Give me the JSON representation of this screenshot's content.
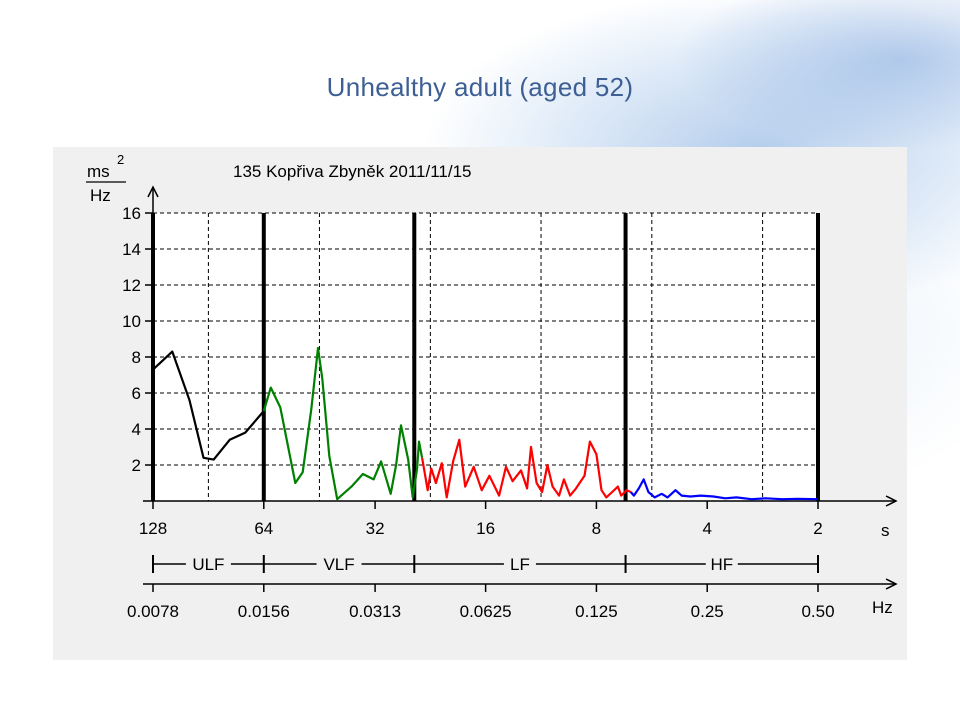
{
  "slide": {
    "title": "Unhealthy adult (aged 52)"
  },
  "chart_data": {
    "type": "line",
    "title": "135 Kopřiva Zbyněk 2011/11/15",
    "ylabel_top": "ms",
    "ylabel_exp": "2",
    "ylabel_bottom": "Hz",
    "y_ticks": [
      "16",
      "14",
      "12",
      "10",
      "8",
      "6",
      "4",
      "2"
    ],
    "ylim": [
      0,
      16
    ],
    "x_period_unit": "s",
    "x_period_ticks": [
      "128",
      "64",
      "32",
      "16",
      "8",
      "4",
      "2"
    ],
    "x_freq_unit": "Hz",
    "x_freq_ticks": [
      "0.0078",
      "0.0156",
      "0.0313",
      "0.0625",
      "0.125",
      "0.25",
      "0.50"
    ],
    "x_scale": "log2",
    "bands": [
      {
        "name": "ULF",
        "from": 0.0078,
        "to": 0.0156,
        "color": "#000000"
      },
      {
        "name": "VLF",
        "from": 0.0156,
        "to": 0.04,
        "color": "#008000"
      },
      {
        "name": "LF",
        "from": 0.04,
        "to": 0.15,
        "color": "#ff0000"
      },
      {
        "name": "HF",
        "from": 0.15,
        "to": 0.5,
        "color": "#0000ff"
      }
    ],
    "series": [
      {
        "band": "ULF",
        "color": "#000000",
        "points": [
          [
            0.0078,
            7.3
          ],
          [
            0.0088,
            8.3
          ],
          [
            0.0098,
            5.6
          ],
          [
            0.0107,
            2.4
          ],
          [
            0.0114,
            2.3
          ],
          [
            0.0126,
            3.4
          ],
          [
            0.0139,
            3.8
          ],
          [
            0.0156,
            5.0
          ]
        ]
      },
      {
        "band": "VLF",
        "color": "#008000",
        "points": [
          [
            0.0156,
            5.0
          ],
          [
            0.0163,
            6.3
          ],
          [
            0.0173,
            5.2
          ],
          [
            0.019,
            1.0
          ],
          [
            0.0199,
            1.6
          ],
          [
            0.021,
            5.1
          ],
          [
            0.0219,
            8.5
          ],
          [
            0.0225,
            6.8
          ],
          [
            0.0235,
            2.5
          ],
          [
            0.0247,
            0.1
          ],
          [
            0.027,
            0.8
          ],
          [
            0.029,
            1.5
          ],
          [
            0.031,
            1.2
          ],
          [
            0.0325,
            2.2
          ],
          [
            0.0345,
            0.4
          ],
          [
            0.0357,
            2.0
          ],
          [
            0.0368,
            4.2
          ],
          [
            0.0385,
            2.3
          ],
          [
            0.0396,
            0.2
          ],
          [
            0.0407,
            1.8
          ],
          [
            0.0412,
            3.3
          ],
          [
            0.042,
            2.4
          ]
        ]
      },
      {
        "band": "LF",
        "color": "#ff0000",
        "points": [
          [
            0.042,
            2.4
          ],
          [
            0.0435,
            0.6
          ],
          [
            0.0445,
            1.8
          ],
          [
            0.0458,
            1.0
          ],
          [
            0.0475,
            2.1
          ],
          [
            0.049,
            0.2
          ],
          [
            0.051,
            2.2
          ],
          [
            0.053,
            3.4
          ],
          [
            0.055,
            0.8
          ],
          [
            0.058,
            1.9
          ],
          [
            0.061,
            0.6
          ],
          [
            0.064,
            1.4
          ],
          [
            0.068,
            0.3
          ],
          [
            0.071,
            1.9
          ],
          [
            0.074,
            1.1
          ],
          [
            0.078,
            1.7
          ],
          [
            0.081,
            0.7
          ],
          [
            0.083,
            3.0
          ],
          [
            0.086,
            1.0
          ],
          [
            0.089,
            0.5
          ],
          [
            0.092,
            2.0
          ],
          [
            0.095,
            0.8
          ],
          [
            0.099,
            0.3
          ],
          [
            0.102,
            1.2
          ],
          [
            0.106,
            0.3
          ],
          [
            0.11,
            0.7
          ],
          [
            0.116,
            1.4
          ],
          [
            0.12,
            3.3
          ],
          [
            0.125,
            2.6
          ],
          [
            0.129,
            0.6
          ],
          [
            0.133,
            0.2
          ],
          [
            0.138,
            0.5
          ],
          [
            0.143,
            0.8
          ],
          [
            0.146,
            0.3
          ],
          [
            0.151,
            0.6
          ],
          [
            0.155,
            0.5
          ]
        ]
      },
      {
        "band": "HF",
        "color": "#0000ff",
        "points": [
          [
            0.155,
            0.5
          ],
          [
            0.158,
            0.3
          ],
          [
            0.163,
            0.7
          ],
          [
            0.168,
            1.2
          ],
          [
            0.173,
            0.5
          ],
          [
            0.18,
            0.2
          ],
          [
            0.188,
            0.4
          ],
          [
            0.195,
            0.2
          ],
          [
            0.205,
            0.6
          ],
          [
            0.213,
            0.3
          ],
          [
            0.225,
            0.25
          ],
          [
            0.24,
            0.3
          ],
          [
            0.26,
            0.25
          ],
          [
            0.28,
            0.15
          ],
          [
            0.3,
            0.2
          ],
          [
            0.33,
            0.1
          ],
          [
            0.36,
            0.15
          ],
          [
            0.4,
            0.1
          ],
          [
            0.44,
            0.12
          ],
          [
            0.5,
            0.1
          ]
        ]
      }
    ]
  }
}
